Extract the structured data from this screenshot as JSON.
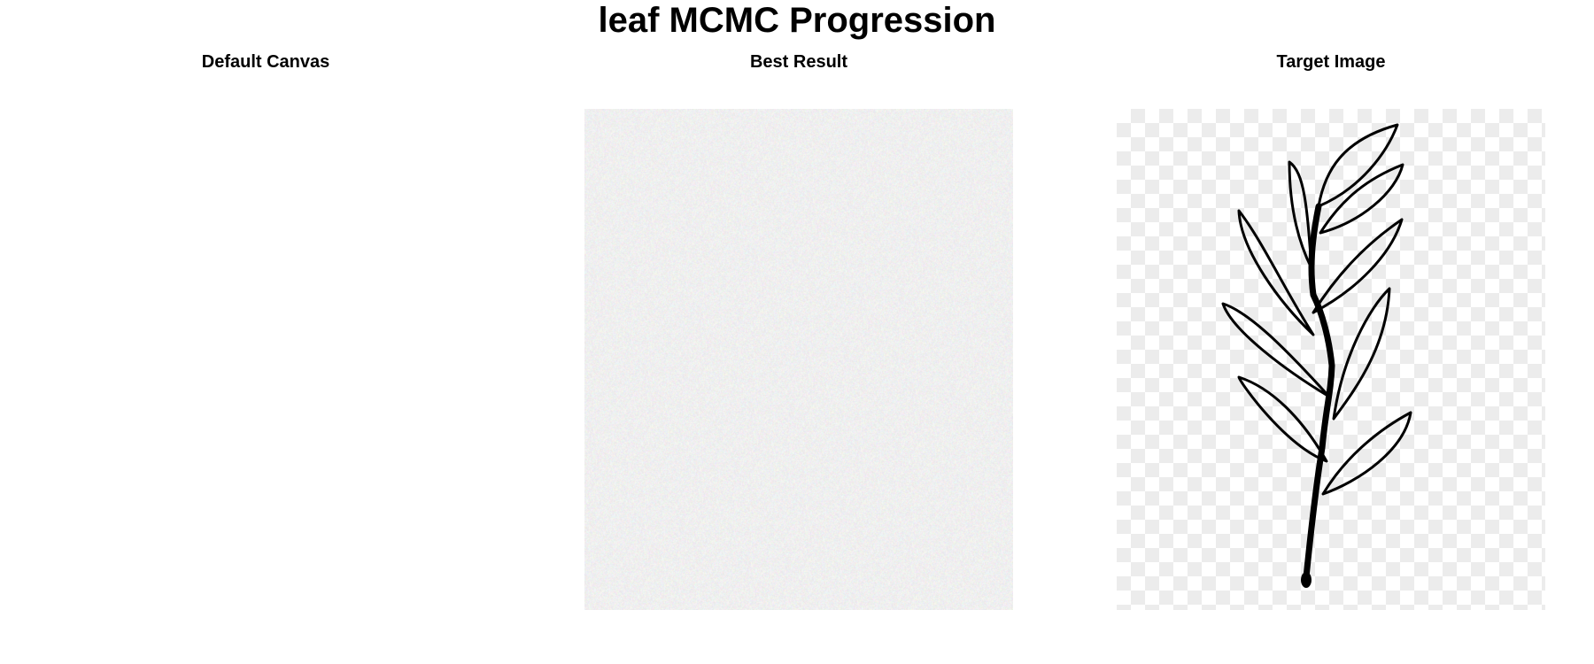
{
  "figure": {
    "title": "leaf MCMC Progression"
  },
  "panels": [
    {
      "title": "Default Canvas",
      "content": "blank white canvas"
    },
    {
      "title": "Best Result",
      "content": "light multicolor noise"
    },
    {
      "title": "Target Image",
      "content": "black line-drawing of a leafy sprig on a transparency checkerboard"
    }
  ],
  "colors": {
    "background": "#ffffff",
    "checker_light": "#ffffff",
    "checker_dark": "#ececec",
    "ink": "#000000"
  }
}
